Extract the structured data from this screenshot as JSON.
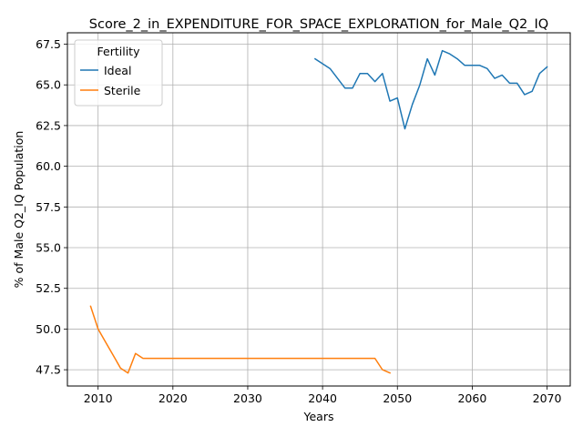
{
  "chart_data": {
    "type": "line",
    "title": "Score_2_in_EXPENDITURE_FOR_SPACE_EXPLORATION_for_Male_Q2_IQ",
    "xlabel": "Years",
    "ylabel": "% of Male Q2_IQ Population",
    "xlim": [
      2005.9,
      2073.1
    ],
    "ylim": [
      46.5,
      68.2
    ],
    "xticks": [
      2010,
      2020,
      2030,
      2040,
      2050,
      2060,
      2070
    ],
    "yticks": [
      47.5,
      50.0,
      52.5,
      55.0,
      57.5,
      60.0,
      62.5,
      65.0,
      67.5
    ],
    "ytick_labels": [
      "47.5",
      "50.0",
      "52.5",
      "55.0",
      "57.5",
      "60.0",
      "62.5",
      "65.0",
      "67.5"
    ],
    "grid": true,
    "legend": {
      "title": "Fertility",
      "placement": "top-left"
    },
    "series": [
      {
        "name": "Ideal",
        "color": "#1f77b4",
        "x": [
          2039,
          2040,
          2041,
          2042,
          2043,
          2044,
          2045,
          2046,
          2047,
          2048,
          2049,
          2050,
          2051,
          2052,
          2053,
          2054,
          2055,
          2056,
          2057,
          2058,
          2059,
          2060,
          2061,
          2062,
          2063,
          2064,
          2065,
          2066,
          2067,
          2068,
          2069,
          2070
        ],
        "y": [
          66.6,
          66.3,
          66.0,
          65.4,
          64.8,
          64.8,
          65.7,
          65.7,
          65.2,
          65.7,
          64.0,
          64.2,
          62.3,
          63.8,
          65.0,
          66.6,
          65.6,
          67.1,
          66.9,
          66.6,
          66.2,
          66.2,
          66.2,
          66.0,
          65.4,
          65.6,
          65.1,
          65.1,
          64.4,
          64.6,
          65.7,
          66.1
        ]
      },
      {
        "name": "Sterile",
        "color": "#ff7f0e",
        "x": [
          2009,
          2010,
          2011,
          2012,
          2013,
          2014,
          2015,
          2016,
          2017,
          2018,
          2019,
          2020,
          2021,
          2022,
          2023,
          2024,
          2025,
          2026,
          2027,
          2028,
          2029,
          2030,
          2031,
          2032,
          2033,
          2034,
          2035,
          2036,
          2037,
          2038,
          2039,
          2040,
          2041,
          2042,
          2043,
          2044,
          2045,
          2046,
          2047,
          2048,
          2049
        ],
        "y": [
          51.4,
          50.0,
          49.2,
          48.4,
          47.6,
          47.3,
          48.5,
          48.2,
          48.2,
          48.2,
          48.2,
          48.2,
          48.2,
          48.2,
          48.2,
          48.2,
          48.2,
          48.2,
          48.2,
          48.2,
          48.2,
          48.2,
          48.2,
          48.2,
          48.2,
          48.2,
          48.2,
          48.2,
          48.2,
          48.2,
          48.2,
          48.2,
          48.2,
          48.2,
          48.2,
          48.2,
          48.2,
          48.2,
          48.2,
          47.5,
          47.3
        ]
      }
    ]
  }
}
